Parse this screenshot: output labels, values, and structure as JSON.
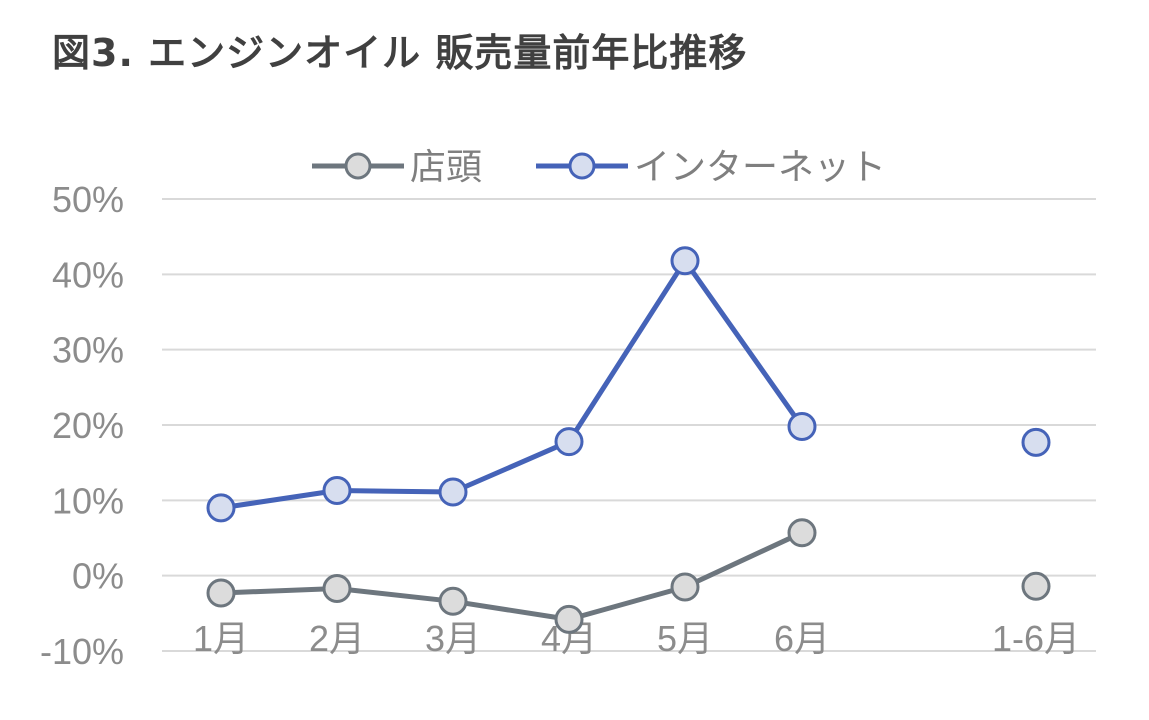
{
  "title": "図3. エンジンオイル 販売量前年比推移",
  "chart_data": {
    "type": "line",
    "categories": [
      "1月",
      "2月",
      "3月",
      "4月",
      "5月",
      "6月",
      "1-6月"
    ],
    "y_ticks": [
      "-10%",
      "0%",
      "10%",
      "20%",
      "30%",
      "40%",
      "50%"
    ],
    "ylim": [
      -10,
      50
    ],
    "y_unit": "%",
    "grid": true,
    "legend_position": "top",
    "series": [
      {
        "name": "店頭",
        "color": "#6d767e",
        "marker_fill": "#dcdcdc",
        "values": [
          -2.3,
          -1.7,
          -3.4,
          -5.8,
          -1.5,
          5.7,
          -1.4
        ],
        "connected_up_to": 5
      },
      {
        "name": "インターネット",
        "color": "#4563b8",
        "marker_fill": "#d7deef",
        "values": [
          9.0,
          11.3,
          11.1,
          17.8,
          41.8,
          19.8,
          17.7
        ],
        "connected_up_to": 5
      }
    ]
  }
}
